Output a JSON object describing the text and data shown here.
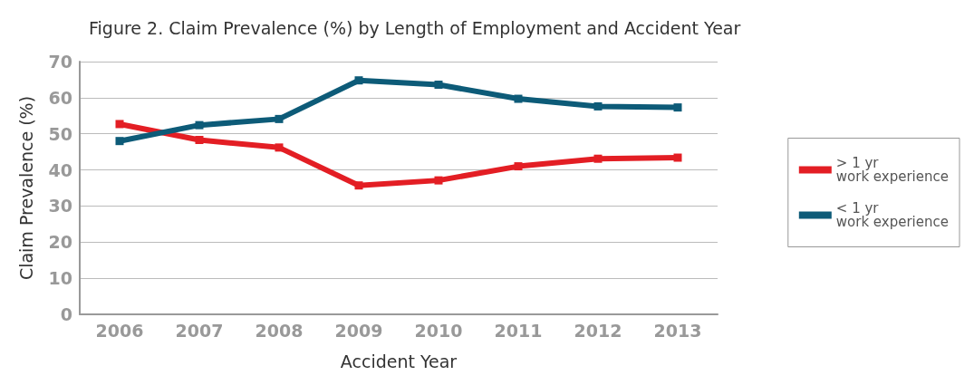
{
  "chart_data": {
    "type": "line",
    "title": "Figure 2. Claim Prevalence (%) by Length of Employment and Accident Year",
    "xlabel": "Accident Year",
    "ylabel": "Claim Prevalence (%)",
    "categories": [
      "2006",
      "2007",
      "2008",
      "2009",
      "2010",
      "2011",
      "2012",
      "2013"
    ],
    "series": [
      {
        "name": "> 1 yr work experience",
        "color": "#e31e24",
        "values": [
          52.7,
          48.3,
          46.2,
          35.7,
          37.1,
          41.0,
          43.1,
          43.4
        ]
      },
      {
        "name": "< 1 yr work experience",
        "color": "#0d5b78",
        "values": [
          48.0,
          52.4,
          54.1,
          64.8,
          63.6,
          59.7,
          57.6,
          57.3
        ]
      }
    ],
    "ylim": [
      0,
      70
    ],
    "yticks": [
      0,
      10,
      20,
      30,
      40,
      50,
      60,
      70
    ],
    "grid": "y",
    "legend": "right",
    "marker": "square",
    "line_style": "solid"
  }
}
